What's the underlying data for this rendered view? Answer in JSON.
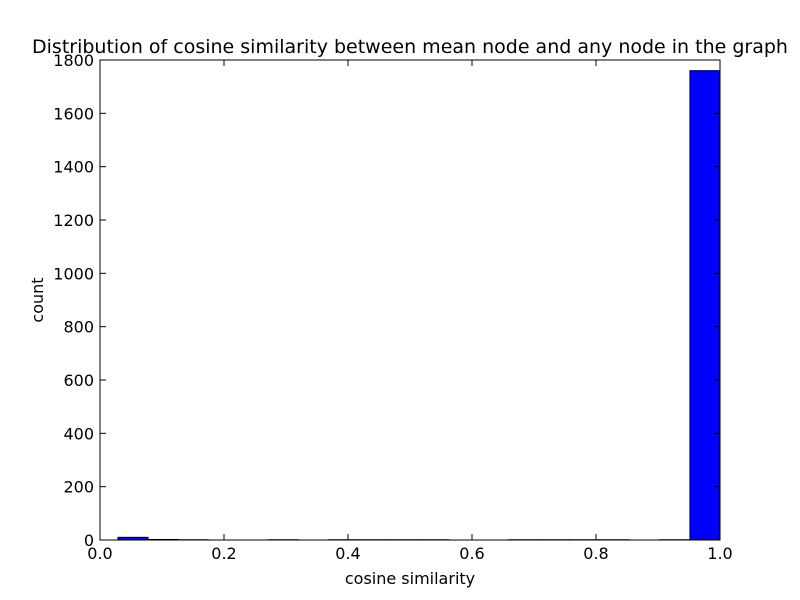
{
  "chart_data": {
    "type": "bar",
    "title": "Distribution of cosine similarity between mean node and any node in the graph",
    "xlabel": "cosine similarity",
    "ylabel": "count",
    "xlim": [
      0.0,
      1.0
    ],
    "ylim": [
      0,
      1800
    ],
    "xticks": [
      "0.0",
      "0.2",
      "0.4",
      "0.6",
      "0.8",
      "1.0"
    ],
    "yticks": [
      "0",
      "200",
      "400",
      "600",
      "800",
      "1000",
      "1200",
      "1400",
      "1600",
      "1800"
    ],
    "bar_color": "#0000ff",
    "bin_width": 0.0485,
    "bins": [
      {
        "x_start": 0.029,
        "value": 10
      },
      {
        "x_start": 0.0775,
        "value": 2
      },
      {
        "x_start": 0.126,
        "value": 1
      },
      {
        "x_start": 0.1745,
        "value": 0
      },
      {
        "x_start": 0.223,
        "value": 0
      },
      {
        "x_start": 0.2715,
        "value": 1
      },
      {
        "x_start": 0.32,
        "value": 0
      },
      {
        "x_start": 0.3685,
        "value": 1
      },
      {
        "x_start": 0.417,
        "value": 1
      },
      {
        "x_start": 0.4655,
        "value": 1
      },
      {
        "x_start": 0.514,
        "value": 1
      },
      {
        "x_start": 0.5625,
        "value": 0
      },
      {
        "x_start": 0.611,
        "value": 0
      },
      {
        "x_start": 0.6595,
        "value": 1
      },
      {
        "x_start": 0.708,
        "value": 1
      },
      {
        "x_start": 0.7565,
        "value": 1
      },
      {
        "x_start": 0.805,
        "value": 1
      },
      {
        "x_start": 0.8535,
        "value": 0
      },
      {
        "x_start": 0.902,
        "value": 1
      },
      {
        "x_start": 0.9515,
        "value": 1760
      }
    ]
  }
}
